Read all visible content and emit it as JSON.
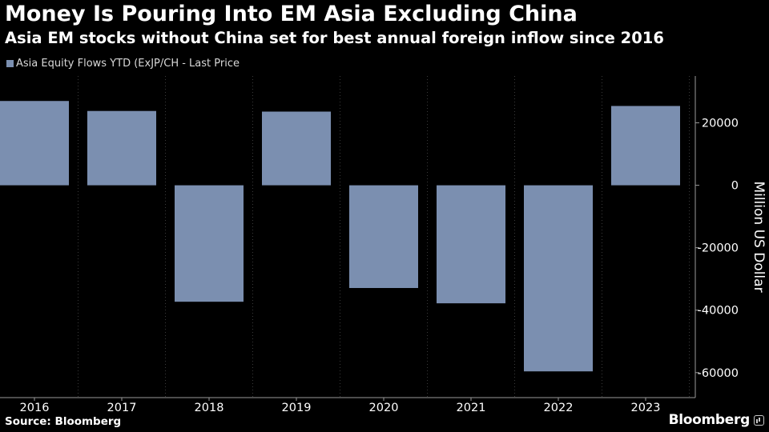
{
  "header": {
    "title": "Money Is Pouring Into EM Asia Excluding China",
    "subtitle": "Asia EM stocks without China set for best annual foreign inflow since 2016"
  },
  "legend": {
    "label": "Asia Equity Flows YTD (ExJP/CH - Last Price"
  },
  "footer": {
    "source": "Source: Bloomberg",
    "brand": "Bloomberg"
  },
  "colors": {
    "background": "#000000",
    "bar": "#7b8fb0",
    "text": "#ffffff",
    "grid": "#333333",
    "axis": "#9a9a9a"
  },
  "chart_data": {
    "type": "bar",
    "categories": [
      "2016",
      "2017",
      "2018",
      "2019",
      "2020",
      "2021",
      "2022",
      "2023"
    ],
    "series": [
      {
        "name": "Asia Equity Flows YTD (ExJP/CH - Last Price",
        "values": [
          27000,
          23800,
          -37300,
          23600,
          -32900,
          -37800,
          -59600,
          25400
        ]
      }
    ],
    "ylabel": "Million US Dollar",
    "ylim": [
      -68000,
      35000
    ],
    "yticks": [
      20000,
      0,
      -20000,
      -40000,
      -60000
    ],
    "ytick_labels": [
      "20000",
      "0",
      "-20000",
      "-40000",
      "-60000"
    ],
    "y_axis_side": "right",
    "grid": "vertical-dotted",
    "legend_position": "top-left"
  }
}
